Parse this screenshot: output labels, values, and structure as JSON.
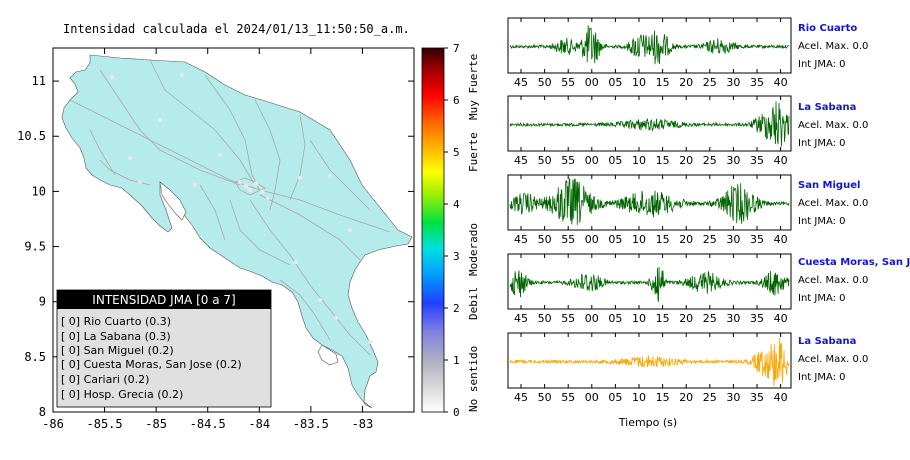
{
  "map": {
    "title": "Intensidad calculada el 2024/01/13_11:50:50_a.m.",
    "xlim": [
      -86,
      -82.5
    ],
    "ylim": [
      8,
      11.3
    ],
    "xticks": [
      "-86",
      "-85.5",
      "-85",
      "-84.5",
      "-84",
      "-83.5",
      "-83"
    ],
    "yticks": [
      "8",
      "8.5",
      "9",
      "9.5",
      "10",
      "10.5",
      "11"
    ],
    "land_color": "#b5ebeb",
    "road_color": "#a8a8a8"
  },
  "legend": {
    "header": "INTENSIDAD JMA [0 a 7]",
    "items": [
      "[ 0] Rio Cuarto (0.3)",
      "[ 0] La Sabana (0.3)",
      "[ 0] San Miguel (0.2)",
      "[ 0] Cuesta Moras, San Jose (0.2)",
      "[ 0] Cariari (0.2)",
      "[ 0] Hosp. Grecia (0.2)"
    ]
  },
  "colorbar": {
    "ticks": [
      "0",
      "1",
      "2",
      "3",
      "4",
      "5",
      "6",
      "7"
    ],
    "labels": [
      "No sentido",
      "Debil",
      "Moderado",
      "Fuerte",
      "Muy Fuerte"
    ]
  },
  "chart_data": [
    {
      "type": "line",
      "name": "Rio Cuarto",
      "x_ticks": [
        "45",
        "50",
        "55",
        "00",
        "05",
        "10",
        "15",
        "20",
        "25",
        "30",
        "35",
        "40"
      ],
      "color": "#006400",
      "accel_label": "Acel. Max. 0.0",
      "jma_label": "Int JMA: 0"
    },
    {
      "type": "line",
      "name": "La Sabana",
      "x_ticks": [
        "45",
        "50",
        "55",
        "00",
        "05",
        "10",
        "15",
        "20",
        "25",
        "30",
        "35",
        "40"
      ],
      "color": "#006400",
      "accel_label": "Acel. Max. 0.0",
      "jma_label": "Int JMA: 0"
    },
    {
      "type": "line",
      "name": "San Miguel",
      "x_ticks": [
        "45",
        "50",
        "55",
        "00",
        "05",
        "10",
        "15",
        "20",
        "25",
        "30",
        "35",
        "40"
      ],
      "color": "#006400",
      "accel_label": "Acel. Max. 0.0",
      "jma_label": "Int JMA: 0"
    },
    {
      "type": "line",
      "name": "Cuesta Moras, San Jose",
      "x_ticks": [
        "45",
        "50",
        "55",
        "00",
        "05",
        "10",
        "15",
        "20",
        "25",
        "30",
        "35",
        "40"
      ],
      "color": "#006400",
      "accel_label": "Acel. Max. 0.0",
      "jma_label": "Int JMA: 0"
    },
    {
      "type": "line",
      "name": "La Sabana",
      "x_ticks": [
        "45",
        "50",
        "55",
        "00",
        "05",
        "10",
        "15",
        "20",
        "25",
        "30",
        "35",
        "40"
      ],
      "color": "#ffa500",
      "accel_label": "Acel. Max. 0.0",
      "jma_label": "Int JMA: 0"
    }
  ],
  "traces_xlabel": "Tiempo (s)"
}
